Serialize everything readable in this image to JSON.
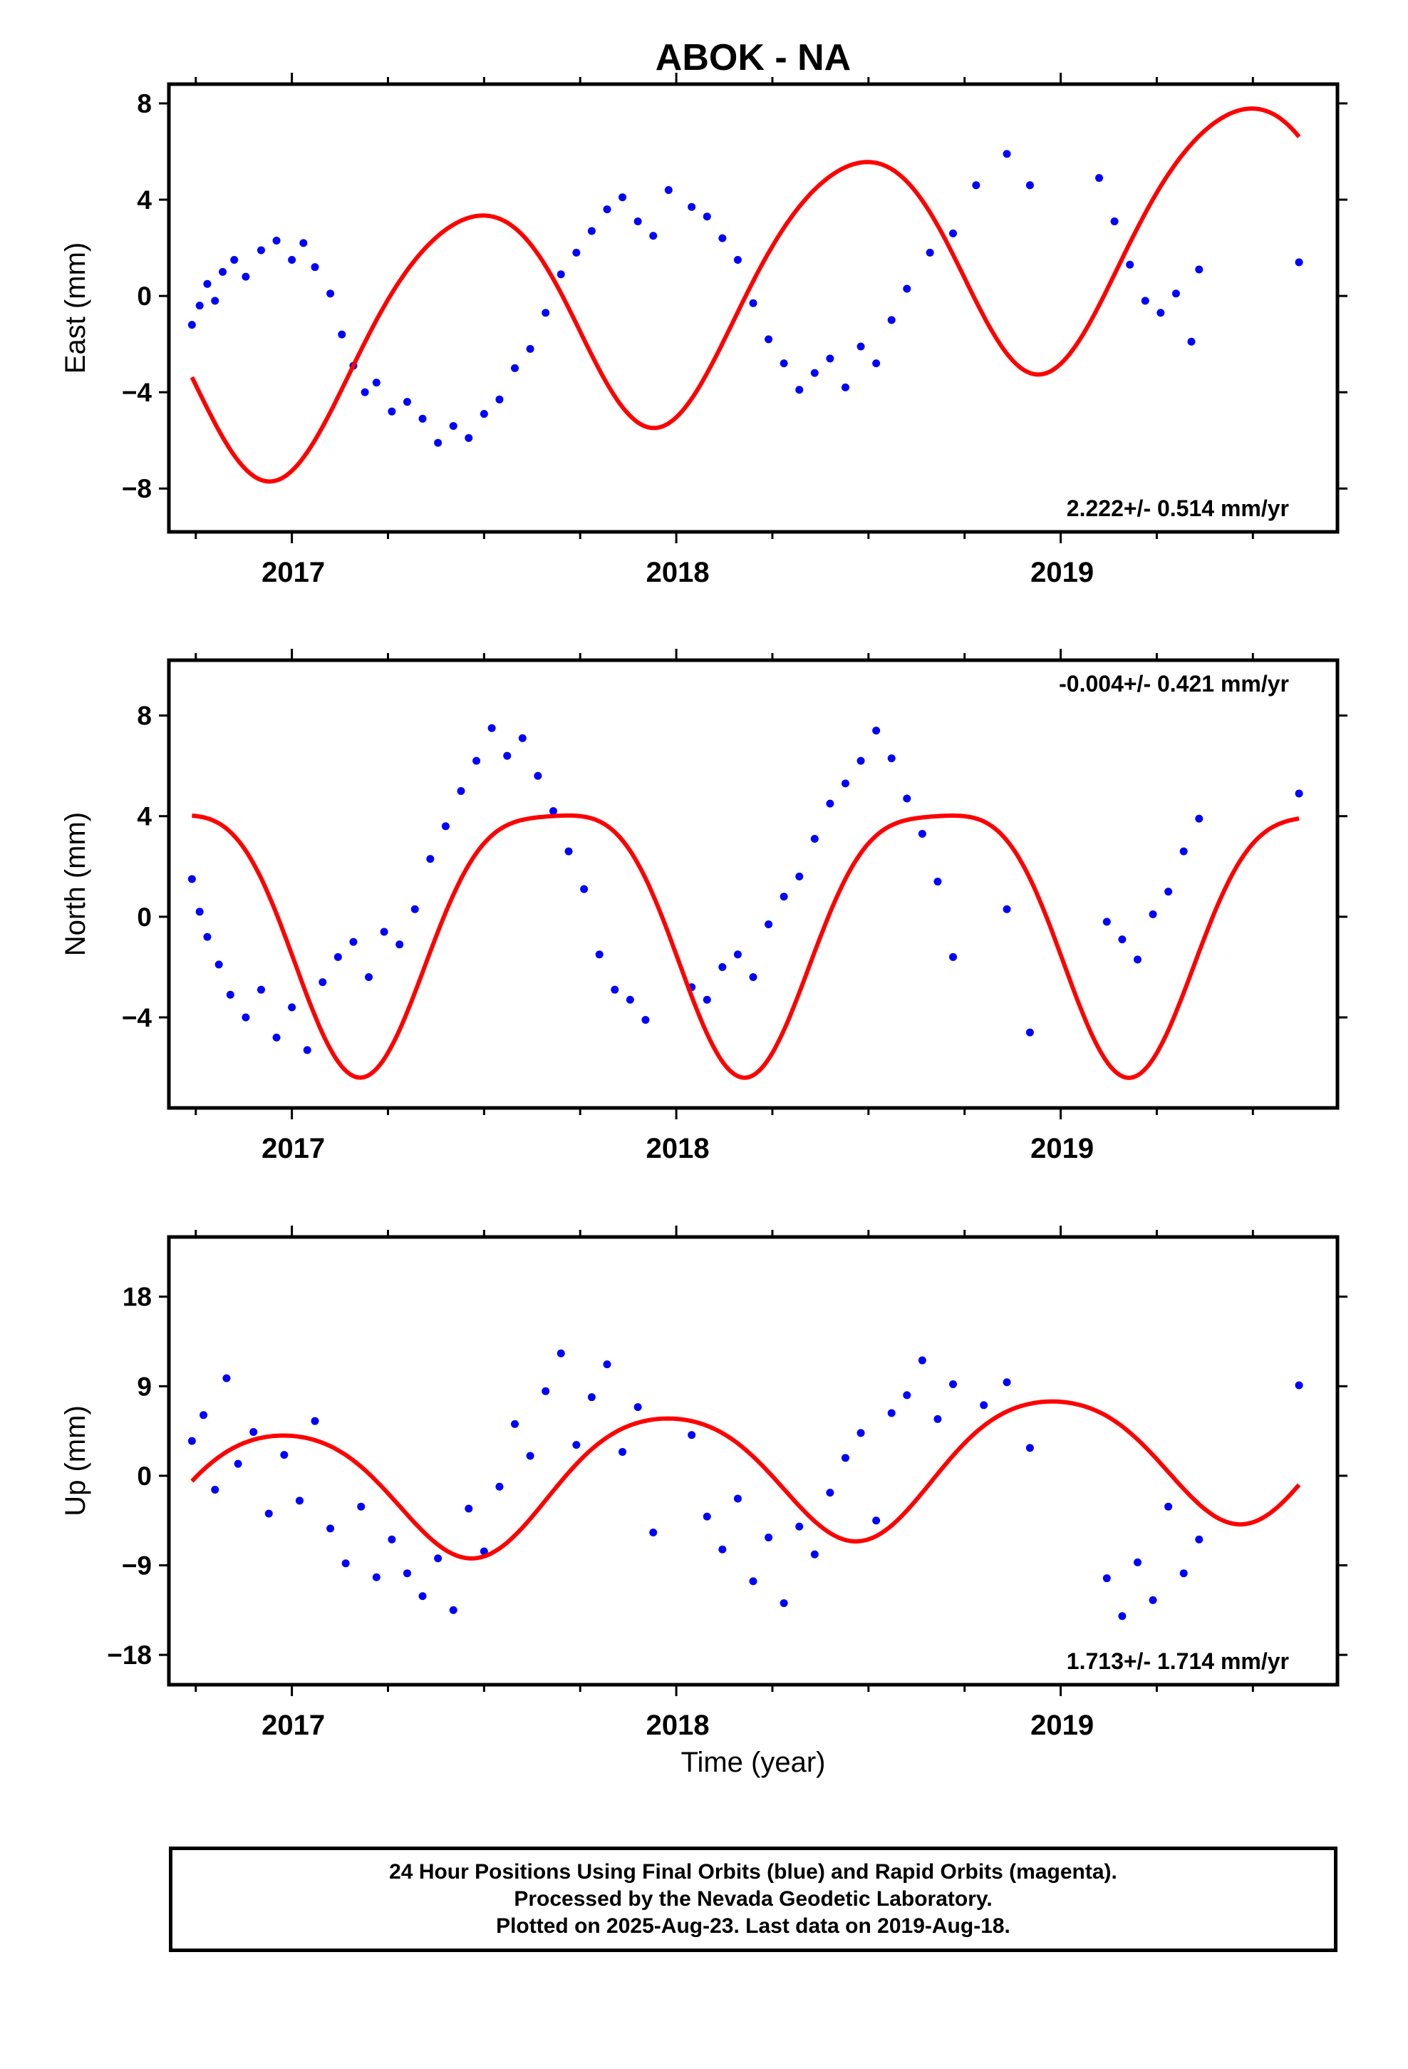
{
  "title": "ABOK - NA",
  "xlabel": "Time (year)",
  "footer": {
    "line1": "24 Hour Positions Using Final Orbits (blue) and Rapid Orbits (magenta).",
    "line2": "Processed by the Nevada Geodetic Laboratory.",
    "line3": "Plotted on 2025-Aug-23. Last data on 2019-Aug-18."
  },
  "colors": {
    "points": "#0000ff",
    "fit": "#ff0000",
    "axes": "#000000"
  },
  "chart_data": [
    {
      "type": "scatter",
      "ylabel": "East (mm)",
      "rate_label": "2.222+/- 0.514 mm/yr",
      "xlim": [
        2016.68,
        2019.72
      ],
      "ylim": [
        -9.8,
        8.8
      ],
      "xticks": [
        2017,
        2018,
        2019
      ],
      "yticks": [
        -8,
        -4,
        0,
        4,
        8
      ],
      "tick_labels": [
        "−8",
        "−4",
        "0",
        "4",
        "8"
      ],
      "fit": {
        "rate": 2.222,
        "amp": 4.9,
        "phase": 0.21,
        "semi_amp": 0.5,
        "semi_phase": 0.05
      },
      "points": {
        "x": [
          2016.74,
          2016.76,
          2016.78,
          2016.8,
          2016.82,
          2016.85,
          2016.88,
          2016.92,
          2016.96,
          2017.0,
          2017.03,
          2017.06,
          2017.1,
          2017.13,
          2017.16,
          2017.19,
          2017.22,
          2017.26,
          2017.3,
          2017.34,
          2017.38,
          2017.42,
          2017.46,
          2017.5,
          2017.54,
          2017.58,
          2017.62,
          2017.66,
          2017.7,
          2017.74,
          2017.78,
          2017.82,
          2017.86,
          2017.9,
          2017.94,
          2017.98,
          2018.04,
          2018.08,
          2018.12,
          2018.16,
          2018.2,
          2018.24,
          2018.28,
          2018.32,
          2018.36,
          2018.4,
          2018.44,
          2018.48,
          2018.52,
          2018.56,
          2018.6,
          2018.66,
          2018.72,
          2018.78,
          2018.86,
          2018.92,
          2019.1,
          2019.14,
          2019.18,
          2019.22,
          2019.26,
          2019.3,
          2019.34,
          2019.36,
          2019.62
        ],
        "y": [
          -1.2,
          -0.4,
          0.5,
          -0.2,
          1.0,
          1.5,
          0.8,
          1.9,
          2.3,
          1.5,
          2.2,
          1.2,
          0.1,
          -1.6,
          -2.9,
          -4.0,
          -3.6,
          -4.8,
          -4.4,
          -5.1,
          -6.1,
          -5.4,
          -5.9,
          -4.9,
          -4.3,
          -3.0,
          -2.2,
          -0.7,
          0.9,
          1.8,
          2.7,
          3.6,
          4.1,
          3.1,
          2.5,
          4.4,
          3.7,
          3.3,
          2.4,
          1.5,
          -0.3,
          -1.8,
          -2.8,
          -3.9,
          -3.2,
          -2.6,
          -3.8,
          -2.1,
          -2.8,
          -1.0,
          0.3,
          1.8,
          2.6,
          4.6,
          5.9,
          4.6,
          4.9,
          3.1,
          1.3,
          -0.2,
          -0.7,
          0.1,
          -1.9,
          1.1,
          1.4
        ]
      }
    },
    {
      "type": "scatter",
      "ylabel": "North (mm)",
      "rate_label": "-0.004+/- 0.421 mm/yr",
      "xlim": [
        2016.68,
        2019.72
      ],
      "ylim": [
        -7.6,
        10.2
      ],
      "xticks": [
        2017,
        2018,
        2019
      ],
      "yticks": [
        -4,
        0,
        4,
        8
      ],
      "tick_labels": [
        "−4",
        "0",
        "4",
        "8"
      ],
      "fit": {
        "rate": -0.004,
        "amp": 5.2,
        "phase": 0.43,
        "semi_amp": 1.2,
        "semi_phase": 0.3
      },
      "points": {
        "x": [
          2016.74,
          2016.76,
          2016.78,
          2016.81,
          2016.84,
          2016.88,
          2016.92,
          2016.96,
          2017.0,
          2017.04,
          2017.08,
          2017.12,
          2017.16,
          2017.2,
          2017.24,
          2017.28,
          2017.32,
          2017.36,
          2017.4,
          2017.44,
          2017.48,
          2017.52,
          2017.56,
          2017.6,
          2017.64,
          2017.68,
          2017.72,
          2017.76,
          2017.8,
          2017.84,
          2017.88,
          2017.92,
          2018.04,
          2018.08,
          2018.12,
          2018.16,
          2018.2,
          2018.24,
          2018.28,
          2018.32,
          2018.36,
          2018.4,
          2018.44,
          2018.48,
          2018.52,
          2018.56,
          2018.6,
          2018.64,
          2018.68,
          2018.72,
          2018.86,
          2018.92,
          2019.12,
          2019.16,
          2019.2,
          2019.24,
          2019.28,
          2019.32,
          2019.36,
          2019.62
        ],
        "y": [
          1.5,
          0.2,
          -0.8,
          -1.9,
          -3.1,
          -4.0,
          -2.9,
          -4.8,
          -3.6,
          -5.3,
          -2.6,
          -1.6,
          -1.0,
          -2.4,
          -0.6,
          -1.1,
          0.3,
          2.3,
          3.6,
          5.0,
          6.2,
          7.5,
          6.4,
          7.1,
          5.6,
          4.2,
          2.6,
          1.1,
          -1.5,
          -2.9,
          -3.3,
          -4.1,
          -2.8,
          -3.3,
          -2.0,
          -1.5,
          -2.4,
          -0.3,
          0.8,
          1.6,
          3.1,
          4.5,
          5.3,
          6.2,
          7.4,
          6.3,
          4.7,
          3.3,
          1.4,
          -1.6,
          0.3,
          -4.6,
          -0.2,
          -0.9,
          -1.7,
          0.1,
          1.0,
          2.6,
          3.9,
          4.9
        ]
      }
    },
    {
      "type": "scatter",
      "ylabel": "Up (mm)",
      "rate_label": "1.713+/- 1.714 mm/yr",
      "xlim": [
        2016.68,
        2019.72
      ],
      "ylim": [
        -21,
        24
      ],
      "xticks": [
        2017,
        2018,
        2019
      ],
      "yticks": [
        -18,
        -9,
        0,
        9,
        18
      ],
      "tick_labels": [
        "−18",
        "−9",
        "0",
        "9",
        "18"
      ],
      "fit": {
        "rate": 1.713,
        "amp": 6.6,
        "phase": 0.72,
        "semi_amp": 0.8,
        "semi_phase": 0.1
      },
      "points": {
        "x": [
          2016.74,
          2016.77,
          2016.8,
          2016.83,
          2016.86,
          2016.9,
          2016.94,
          2016.98,
          2017.02,
          2017.06,
          2017.1,
          2017.14,
          2017.18,
          2017.22,
          2017.26,
          2017.3,
          2017.34,
          2017.38,
          2017.42,
          2017.46,
          2017.5,
          2017.54,
          2017.58,
          2017.62,
          2017.66,
          2017.7,
          2017.74,
          2017.78,
          2017.82,
          2017.86,
          2017.9,
          2017.94,
          2018.04,
          2018.08,
          2018.12,
          2018.16,
          2018.2,
          2018.24,
          2018.28,
          2018.32,
          2018.36,
          2018.4,
          2018.44,
          2018.48,
          2018.52,
          2018.56,
          2018.6,
          2018.64,
          2018.68,
          2018.72,
          2018.8,
          2018.86,
          2018.92,
          2019.12,
          2019.16,
          2019.2,
          2019.24,
          2019.28,
          2019.32,
          2019.36,
          2019.62
        ],
        "y": [
          3.5,
          6.1,
          -1.4,
          9.8,
          1.2,
          4.4,
          -3.8,
          2.1,
          -2.5,
          5.5,
          -5.3,
          -8.8,
          -3.1,
          -10.2,
          -6.4,
          -9.8,
          -12.1,
          -8.3,
          -13.5,
          -3.3,
          -7.6,
          -1.1,
          5.2,
          2.0,
          8.5,
          12.3,
          3.1,
          7.9,
          11.2,
          2.4,
          6.9,
          -5.7,
          4.1,
          -4.1,
          -7.4,
          -2.3,
          -10.6,
          -6.2,
          -12.8,
          -5.1,
          -7.9,
          -1.7,
          1.8,
          4.3,
          -4.5,
          6.3,
          8.1,
          11.6,
          5.7,
          9.2,
          7.1,
          9.4,
          2.8,
          -10.3,
          -14.1,
          -8.7,
          -12.5,
          -3.1,
          -9.8,
          -6.4,
          9.1
        ]
      }
    }
  ]
}
